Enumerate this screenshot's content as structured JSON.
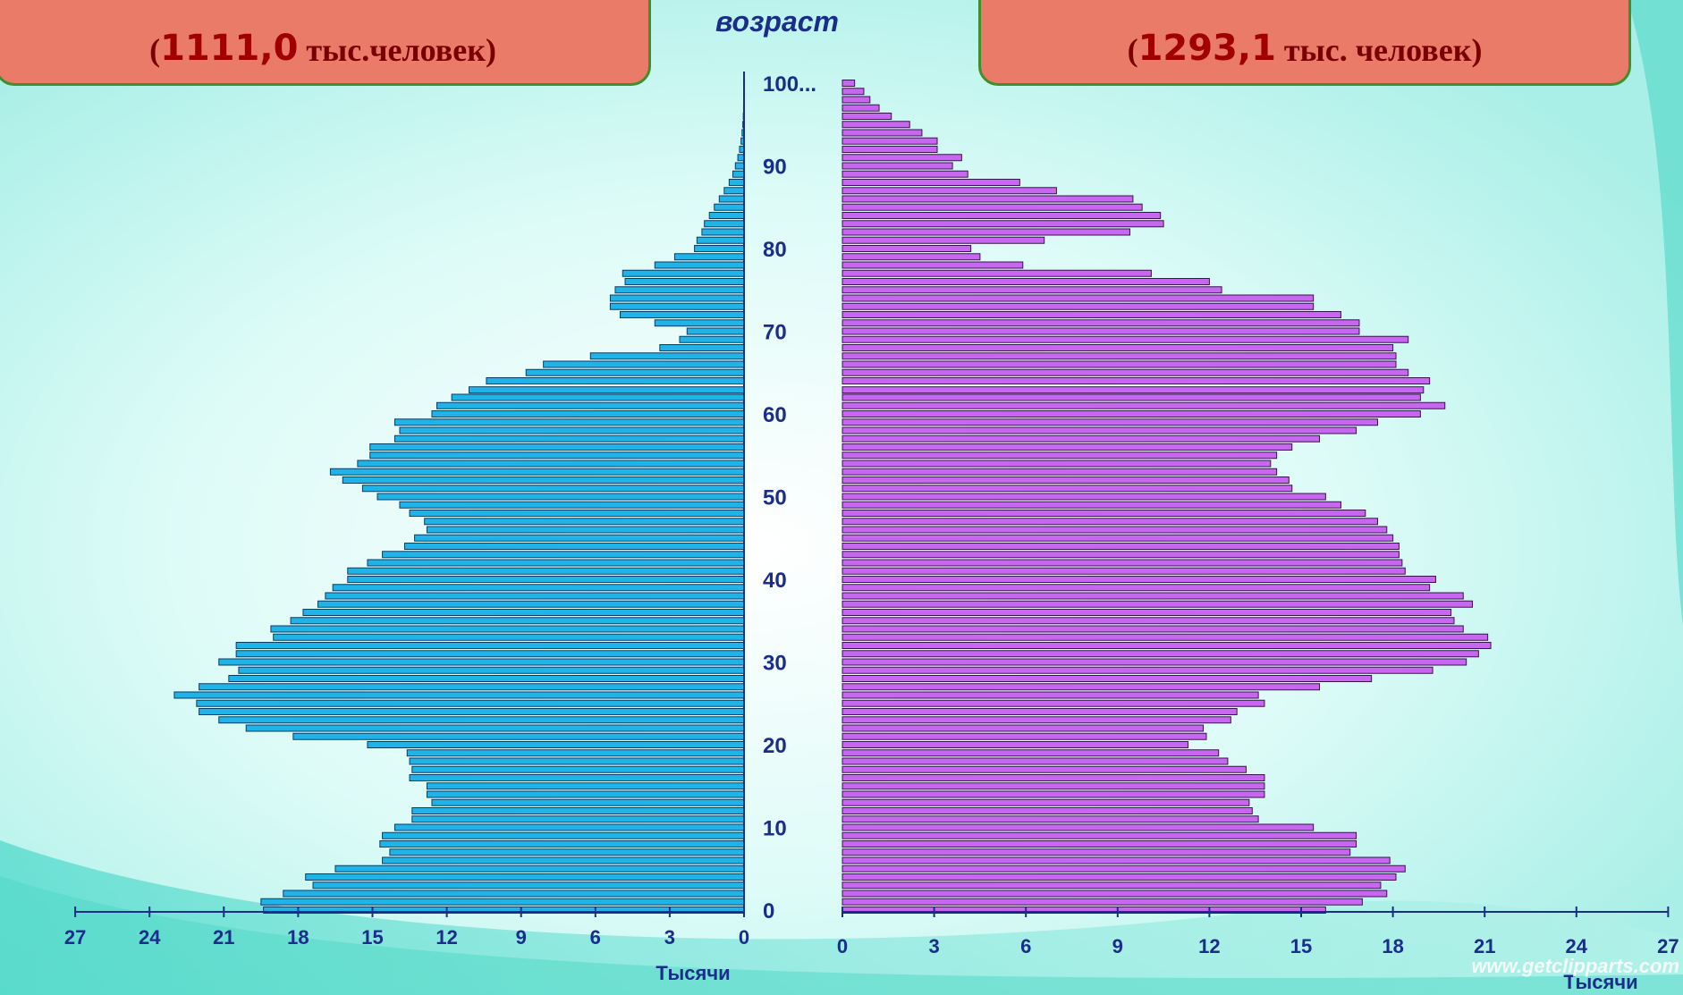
{
  "header": {
    "left_total_value": "1111,0",
    "left_total_unit": "тыс.человек",
    "right_total_value": "1293,1",
    "right_total_unit": "тыс. человек",
    "age_axis_label": "возраст"
  },
  "watermark": "www.getclipparts.com",
  "colors": {
    "left_bars": "#1fb3e8",
    "right_bars": "#c766ee",
    "axis_text": "#1a2d8a",
    "box_fill": "#ea7b68",
    "box_text": "#a00000"
  },
  "chart_data": {
    "type": "bar",
    "orientation": "horizontal",
    "ages": [
      0,
      1,
      2,
      3,
      4,
      5,
      6,
      7,
      8,
      9,
      10,
      11,
      12,
      13,
      14,
      15,
      16,
      17,
      18,
      19,
      20,
      21,
      22,
      23,
      24,
      25,
      26,
      27,
      28,
      29,
      30,
      31,
      32,
      33,
      34,
      35,
      36,
      37,
      38,
      39,
      40,
      41,
      42,
      43,
      44,
      45,
      46,
      47,
      48,
      49,
      50,
      51,
      52,
      53,
      54,
      55,
      56,
      57,
      58,
      59,
      60,
      61,
      62,
      62.9,
      64,
      65,
      66,
      67,
      68,
      69,
      70,
      71,
      72,
      73,
      74,
      75,
      76,
      77,
      78,
      79,
      80,
      81,
      82,
      83,
      84,
      85,
      86,
      87,
      88,
      89,
      90,
      91,
      92,
      93,
      94,
      95,
      96,
      97,
      98,
      99,
      100
    ],
    "age_tick_labels": [
      "0",
      "10",
      "20",
      "30",
      "40",
      "50",
      "60",
      "70",
      "80",
      "90",
      "100..."
    ],
    "left_series": [
      19.4,
      19.5,
      18.6,
      17.4,
      17.7,
      16.5,
      14.6,
      14.3,
      14.7,
      14.6,
      14.1,
      13.4,
      13.4,
      12.6,
      12.8,
      12.8,
      13.5,
      13.4,
      13.5,
      13.6,
      15.2,
      18.2,
      20.1,
      21.2,
      22.0,
      22.1,
      23.0,
      22.0,
      20.8,
      20.4,
      21.2,
      20.5,
      20.5,
      19.0,
      19.1,
      18.3,
      17.8,
      17.2,
      16.9,
      16.6,
      16.0,
      16.0,
      15.2,
      14.6,
      13.7,
      13.3,
      12.8,
      12.9,
      13.5,
      13.9,
      14.8,
      15.4,
      16.2,
      16.7,
      15.6,
      15.1,
      15.1,
      14.1,
      13.9,
      14.1,
      12.6,
      12.4,
      11.8,
      11.1,
      10.4,
      8.8,
      8.1,
      6.2,
      3.4,
      2.6,
      2.3,
      3.6,
      5.0,
      5.4,
      5.4,
      5.2,
      4.8,
      4.9,
      3.6,
      2.8,
      2.0,
      1.9,
      1.7,
      1.6,
      1.4,
      1.2,
      1.0,
      0.8,
      0.6,
      0.45,
      0.35,
      0.25,
      0.18,
      0.12,
      0.08,
      0.05,
      0.03,
      0.02,
      0.01,
      0.01,
      0.01
    ],
    "right_series": [
      15.8,
      17.0,
      17.8,
      17.6,
      18.1,
      18.4,
      17.9,
      16.6,
      16.8,
      16.8,
      15.4,
      13.6,
      13.4,
      13.3,
      13.8,
      13.8,
      13.8,
      13.2,
      12.6,
      12.3,
      11.3,
      11.9,
      11.8,
      12.7,
      12.9,
      13.8,
      13.6,
      15.6,
      17.3,
      19.3,
      20.4,
      20.8,
      21.2,
      21.1,
      20.3,
      20.0,
      19.9,
      20.6,
      20.3,
      19.2,
      19.4,
      18.4,
      18.3,
      18.2,
      18.2,
      18.0,
      17.8,
      17.5,
      17.1,
      16.3,
      15.8,
      14.7,
      14.6,
      14.2,
      14.0,
      14.2,
      14.7,
      15.6,
      16.8,
      17.5,
      18.9,
      19.7,
      18.9,
      19.0,
      19.2,
      18.5,
      18.1,
      18.1,
      18.0,
      18.5,
      16.9,
      16.9,
      16.3,
      15.4,
      15.4,
      12.4,
      12.0,
      10.1,
      5.9,
      4.5,
      4.2,
      6.6,
      9.4,
      10.5,
      10.4,
      9.8,
      9.5,
      7.0,
      5.8,
      4.1,
      3.6,
      3.9,
      3.1,
      3.1,
      2.6,
      2.2,
      1.6,
      1.2,
      0.9,
      0.7,
      0.4
    ],
    "xlim": [
      0,
      27
    ],
    "x_ticks": [
      0,
      3,
      6,
      9,
      12,
      15,
      18,
      21,
      24,
      27
    ],
    "x_tick_labels_left": [
      "27",
      "24",
      "21",
      "18",
      "15",
      "12",
      "9",
      "6",
      "3",
      "0"
    ],
    "x_tick_labels_right": [
      "0",
      "3",
      "6",
      "9",
      "12",
      "15",
      "18",
      "21",
      "24",
      "27"
    ],
    "xlabel": "Тысячи",
    "ylabel": "возраст"
  }
}
